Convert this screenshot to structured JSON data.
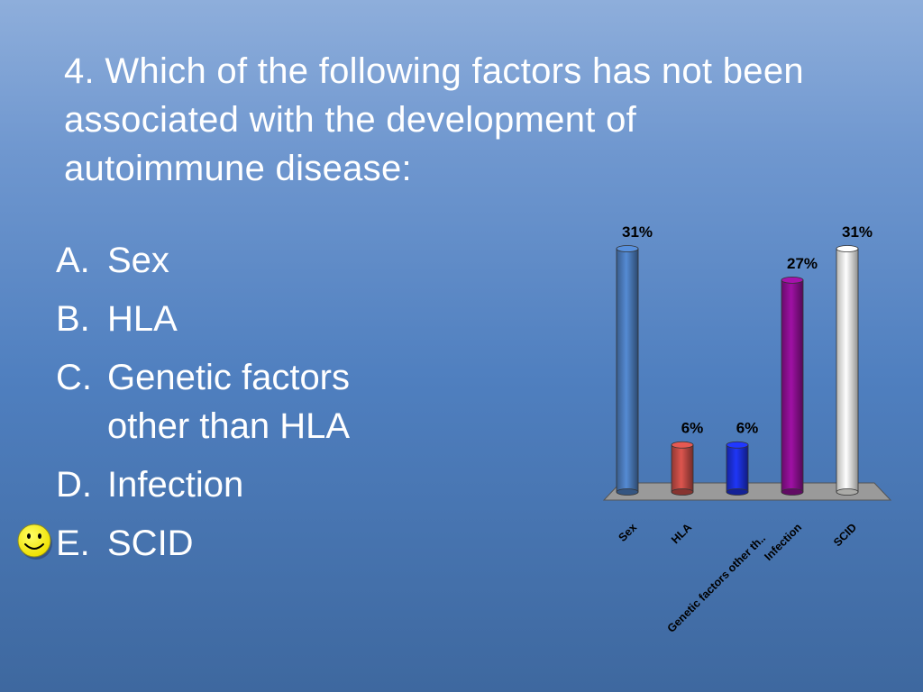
{
  "title_lines": [
    "4. Which of the following factors has not been",
    "associated with the development of",
    "autoimmune disease:"
  ],
  "options": [
    {
      "letter": "A.",
      "lines": [
        "Sex"
      ]
    },
    {
      "letter": "B.",
      "lines": [
        "HLA"
      ]
    },
    {
      "letter": "C.",
      "lines": [
        "Genetic factors",
        "other than HLA"
      ]
    },
    {
      "letter": "D.",
      "lines": [
        "Infection"
      ]
    },
    {
      "letter": "E.",
      "lines": [
        "SCID"
      ]
    }
  ],
  "correct_marker_icon": "smiley-face-icon",
  "chart_data": {
    "type": "bar",
    "style": "3d-cylinder",
    "categories": [
      "Sex",
      "HLA",
      "Genetic factors other th..",
      "Infection",
      "SCID"
    ],
    "values": [
      31,
      6,
      6,
      27,
      31
    ],
    "value_labels": [
      "31%",
      "6%",
      "6%",
      "27%",
      "31%"
    ],
    "ylim": [
      0,
      31
    ],
    "colors": [
      "#4a79b8",
      "#c04a44",
      "#1b2fd6",
      "#8a0f8f",
      "#f4f4f0"
    ],
    "floor_color": "#9a9a9a",
    "grid": false,
    "legend": "none"
  }
}
